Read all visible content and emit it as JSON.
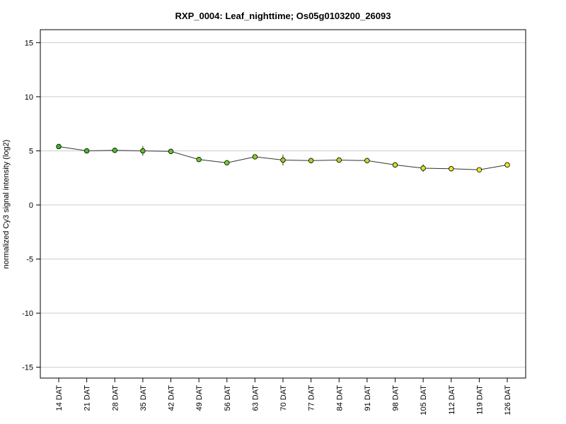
{
  "chart_data": {
    "type": "line",
    "title": "RXP_0004: Leaf_nighttime; Os05g0103200_26093",
    "xlabel": "",
    "ylabel": "normalized Cy3 signal intensity (log2)",
    "ylim": [
      -16,
      16.2
    ],
    "yticks": [
      15,
      10,
      5,
      0,
      -5,
      -10,
      -15
    ],
    "grid": true,
    "categories": [
      "14 DAT",
      "21 DAT",
      "28 DAT",
      "35 DAT",
      "42 DAT",
      "49 DAT",
      "56 DAT",
      "63 DAT",
      "70 DAT",
      "77 DAT",
      "84 DAT",
      "91 DAT",
      "98 DAT",
      "105 DAT",
      "112 DAT",
      "119 DAT",
      "126 DAT"
    ],
    "values": [
      5.4,
      5.0,
      5.05,
      5.0,
      4.95,
      4.2,
      3.9,
      4.45,
      4.15,
      4.1,
      4.15,
      4.1,
      3.7,
      3.4,
      3.35,
      3.25,
      3.7
    ],
    "error": [
      0.1,
      0.1,
      0.1,
      0.45,
      0.1,
      0.1,
      0.1,
      0.1,
      0.5,
      0.1,
      0.2,
      0.1,
      0.25,
      0.35,
      0.1,
      0.1,
      0.1
    ],
    "point_colors": [
      "#33bb22",
      "#44bf22",
      "#4cc222",
      "#55c522",
      "#5ec822",
      "#6acb22",
      "#78cf22",
      "#86d222",
      "#94d622",
      "#a3da22",
      "#b2dd22",
      "#c0e022",
      "#cde322",
      "#dae622",
      "#e5e822",
      "#eeea22",
      "#f5ec22"
    ]
  }
}
